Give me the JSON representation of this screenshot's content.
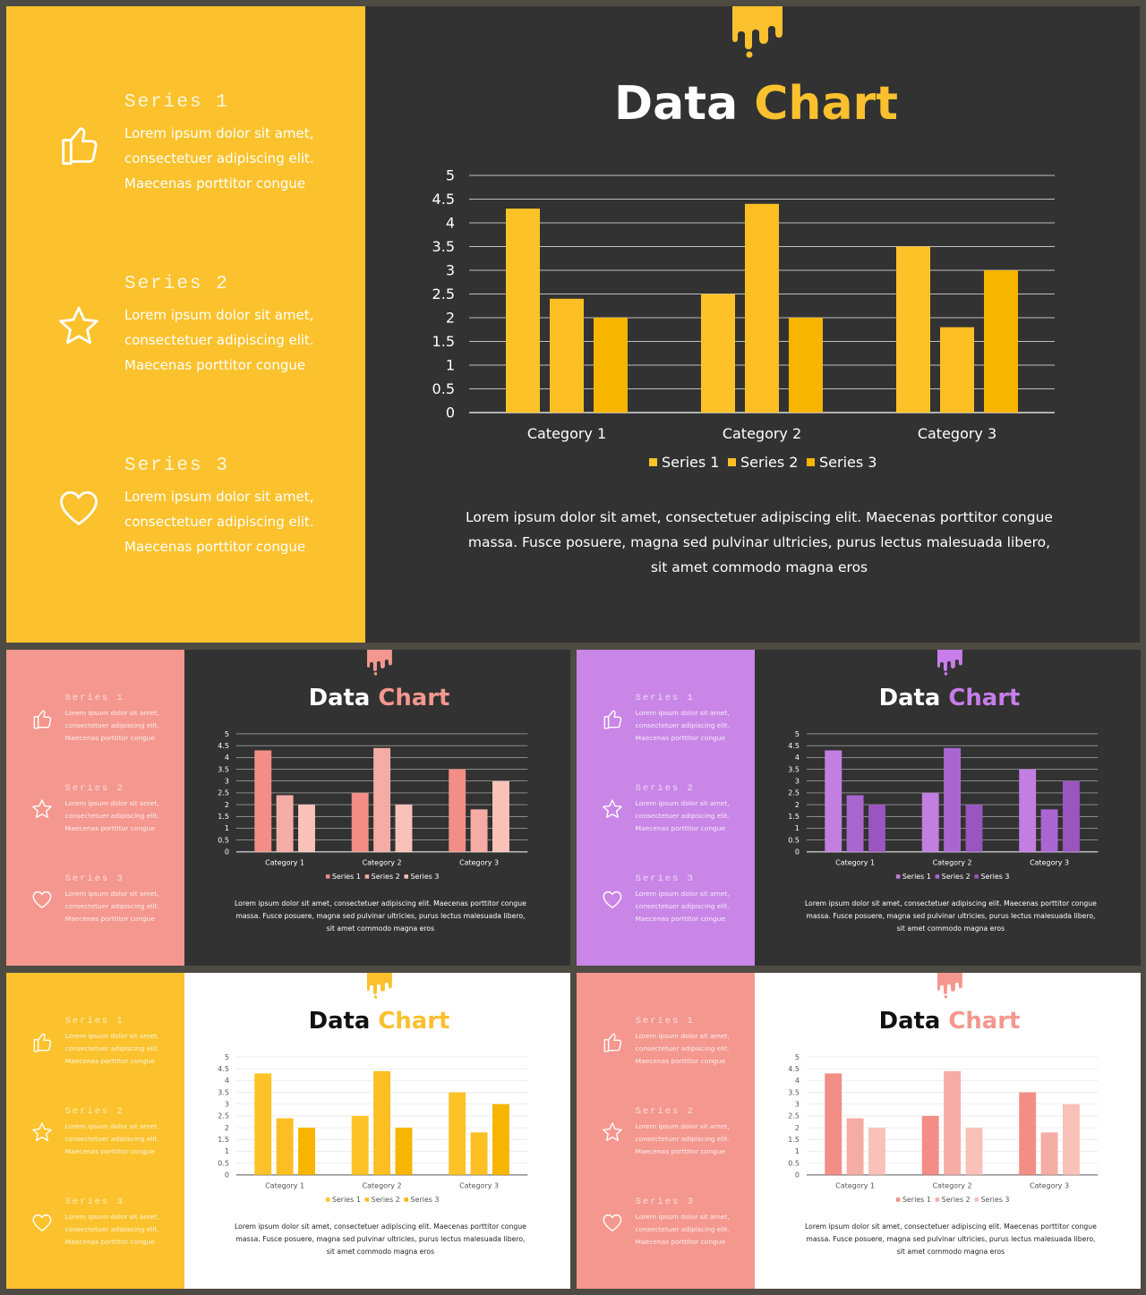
{
  "slides": [
    {
      "id": "large-yellow-dark",
      "accent": "#fbc02d",
      "left_bg": "#fbc22d",
      "right_bg": "#323232",
      "title_color": "#ffffff",
      "text_color": "#ffffff",
      "axis_color": "#ffffff",
      "grid_color": "#bfbfbf",
      "series_colors": [
        "#fcc227",
        "#fbbf24",
        "#f7b500"
      ],
      "title_part1": "Data",
      "title_part2": "Chart",
      "series": [
        {
          "name": "Series 1",
          "icon": "thumbs-up-icon",
          "desc": "Lorem ipsum dolor sit amet,\nconsectetuer adipiscing elit.\nMaecenas porttitor congue"
        },
        {
          "name": "Series 2",
          "icon": "star-icon",
          "desc": "Lorem ipsum dolor sit amet,\nconsectetuer adipiscing elit.\nMaecenas porttitor congue"
        },
        {
          "name": "Series 3",
          "icon": "heart-icon",
          "desc": "Lorem ipsum dolor sit amet,\nconsectetuer adipiscing elit.\nMaecenas porttitor congue"
        }
      ],
      "body": "Lorem ipsum dolor sit amet, consectetuer adipiscing elit. Maecenas porttitor congue massa. Fusce posuere, magna sed pulvinar ultricies, purus lectus malesuada libero, sit amet commodo magna eros"
    },
    {
      "id": "small-coral-dark",
      "accent": "#f4978e",
      "left_bg": "#f4978e",
      "right_bg": "#323232",
      "title_color": "#ffffff",
      "text_color": "#ffffff",
      "axis_color": "#ffffff",
      "grid_color": "#bfbfbf",
      "series_colors": [
        "#f28e86",
        "#f4aca5",
        "#f8c2b9"
      ],
      "title_part1": "Data",
      "title_part2": "Chart",
      "series": [
        {
          "name": "Series 1",
          "icon": "thumbs-up-icon",
          "desc": "Lorem ipsum dolor sit amet,\nconsectetuer adipiscing elit.\nMaecenas porttitor congue"
        },
        {
          "name": "Series 2",
          "icon": "star-icon",
          "desc": "Lorem ipsum dolor sit amet,\nconsectetuer adipiscing elit.\nMaecenas porttitor congue"
        },
        {
          "name": "Series 3",
          "icon": "heart-icon",
          "desc": "Lorem ipsum dolor sit amet,\nconsectetuer adipiscing elit.\nMaecenas porttitor congue"
        }
      ],
      "body": "Lorem ipsum dolor sit amet, consectetuer adipiscing elit. Maecenas porttitor congue massa. Fusce posuere, magna sed pulvinar ultricies, purus lectus malesuada libero, sit amet commodo magna eros"
    },
    {
      "id": "small-purple-dark",
      "accent": "#c77dea",
      "left_bg": "#c986e6",
      "right_bg": "#323232",
      "title_color": "#ffffff",
      "text_color": "#ffffff",
      "axis_color": "#ffffff",
      "grid_color": "#bfbfbf",
      "series_colors": [
        "#c27ee0",
        "#a966d1",
        "#9a55be"
      ],
      "title_part1": "Data",
      "title_part2": "Chart",
      "series": [
        {
          "name": "Series 1",
          "icon": "thumbs-up-icon",
          "desc": "Lorem ipsum dolor sit amet,\nconsectetuer adipiscing elit.\nMaecenas porttitor congue"
        },
        {
          "name": "Series 2",
          "icon": "star-icon",
          "desc": "Lorem ipsum dolor sit amet,\nconsectetuer adipiscing elit.\nMaecenas porttitor congue"
        },
        {
          "name": "Series 3",
          "icon": "heart-icon",
          "desc": "Lorem ipsum dolor sit amet,\nconsectetuer adipiscing elit.\nMaecenas porttitor congue"
        }
      ],
      "body": "Lorem ipsum dolor sit amet, consectetuer adipiscing elit. Maecenas porttitor congue massa. Fusce posuere, magna sed pulvinar ultricies, purus lectus malesuada libero, sit amet commodo magna eros"
    },
    {
      "id": "small-yellow-light",
      "accent": "#fbc02d",
      "left_bg": "#fbc22d",
      "right_bg": "#ffffff",
      "title_color": "#111111",
      "text_color": "#222222",
      "axis_color": "#555555",
      "grid_color": "#e2e2e2",
      "series_colors": [
        "#fcc227",
        "#fbbf24",
        "#f7b500"
      ],
      "title_part1": "Data",
      "title_part2": "Chart",
      "series": [
        {
          "name": "Series 1",
          "icon": "thumbs-up-icon",
          "desc": "Lorem ipsum dolor sit amet,\nconsectetuer adipiscing elit.\nMaecenas porttitor congue"
        },
        {
          "name": "Series 2",
          "icon": "star-icon",
          "desc": "Lorem ipsum dolor sit amet,\nconsectetuer adipiscing elit.\nMaecenas porttitor congue"
        },
        {
          "name": "Series 3",
          "icon": "heart-icon",
          "desc": "Lorem ipsum dolor sit amet,\nconsectetuer adipiscing elit.\nMaecenas porttitor congue"
        }
      ],
      "body": "Lorem ipsum dolor sit amet, consectetuer adipiscing elit. Maecenas porttitor congue massa. Fusce posuere, magna sed pulvinar ultricies, purus lectus malesuada libero, sit amet commodo magna eros"
    },
    {
      "id": "small-coral-light",
      "accent": "#f4978e",
      "left_bg": "#f4978e",
      "right_bg": "#ffffff",
      "title_color": "#111111",
      "text_color": "#222222",
      "axis_color": "#555555",
      "grid_color": "#e2e2e2",
      "series_colors": [
        "#f28e86",
        "#f4aca5",
        "#f8c2b9"
      ],
      "title_part1": "Data",
      "title_part2": "Chart",
      "series": [
        {
          "name": "Series 1",
          "icon": "thumbs-up-icon",
          "desc": "Lorem ipsum dolor sit amet,\nconsectetuer adipiscing elit.\nMaecenas porttitor congue"
        },
        {
          "name": "Series 2",
          "icon": "star-icon",
          "desc": "Lorem ipsum dolor sit amet,\nconsectetuer adipiscing elit.\nMaecenas porttitor congue"
        },
        {
          "name": "Series 3",
          "icon": "heart-icon",
          "desc": "Lorem ipsum dolor sit amet,\nconsectetuer adipiscing elit.\nMaecenas porttitor congue"
        }
      ],
      "body": "Lorem ipsum dolor sit amet, consectetuer adipiscing elit. Maecenas porttitor congue massa. Fusce posuere, magna sed pulvinar ultricies, purus lectus malesuada libero, sit amet commodo magna eros"
    }
  ],
  "chart_data": {
    "type": "bar",
    "categories": [
      "Category 1",
      "Category 2",
      "Category 3"
    ],
    "series": [
      {
        "name": "Series 1",
        "values": [
          4.3,
          2.5,
          3.5
        ]
      },
      {
        "name": "Series 2",
        "values": [
          2.4,
          4.4,
          1.8
        ]
      },
      {
        "name": "Series 3",
        "values": [
          2.0,
          2.0,
          3.0
        ]
      }
    ],
    "yticks": [
      "0",
      "0.5",
      "1",
      "1.5",
      "2",
      "2.5",
      "3",
      "3.5",
      "4",
      "4.5",
      "5"
    ],
    "ylim": [
      0,
      5
    ],
    "grid": true,
    "legend": "bottom"
  }
}
